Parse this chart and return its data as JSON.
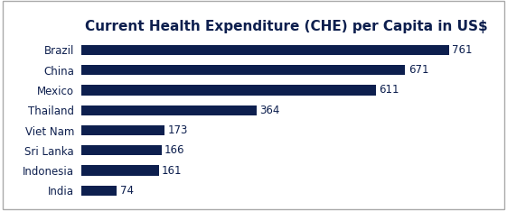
{
  "title": "Current Health Expenditure (CHE) per Capita in US$",
  "categories": [
    "Brazil",
    "China",
    "Mexico",
    "Thailand",
    "Viet Nam",
    "Sri Lanka",
    "Indonesia",
    "India"
  ],
  "values": [
    761,
    671,
    611,
    364,
    173,
    166,
    161,
    74
  ],
  "bar_color": "#0d1f4e",
  "label_color": "#0d1f4e",
  "title_color": "#0d1f4e",
  "background_color": "#ffffff",
  "border_color": "#aaaaaa",
  "title_fontsize": 11,
  "label_fontsize": 8.5,
  "value_fontsize": 8.5,
  "xlim": [
    0,
    850
  ]
}
